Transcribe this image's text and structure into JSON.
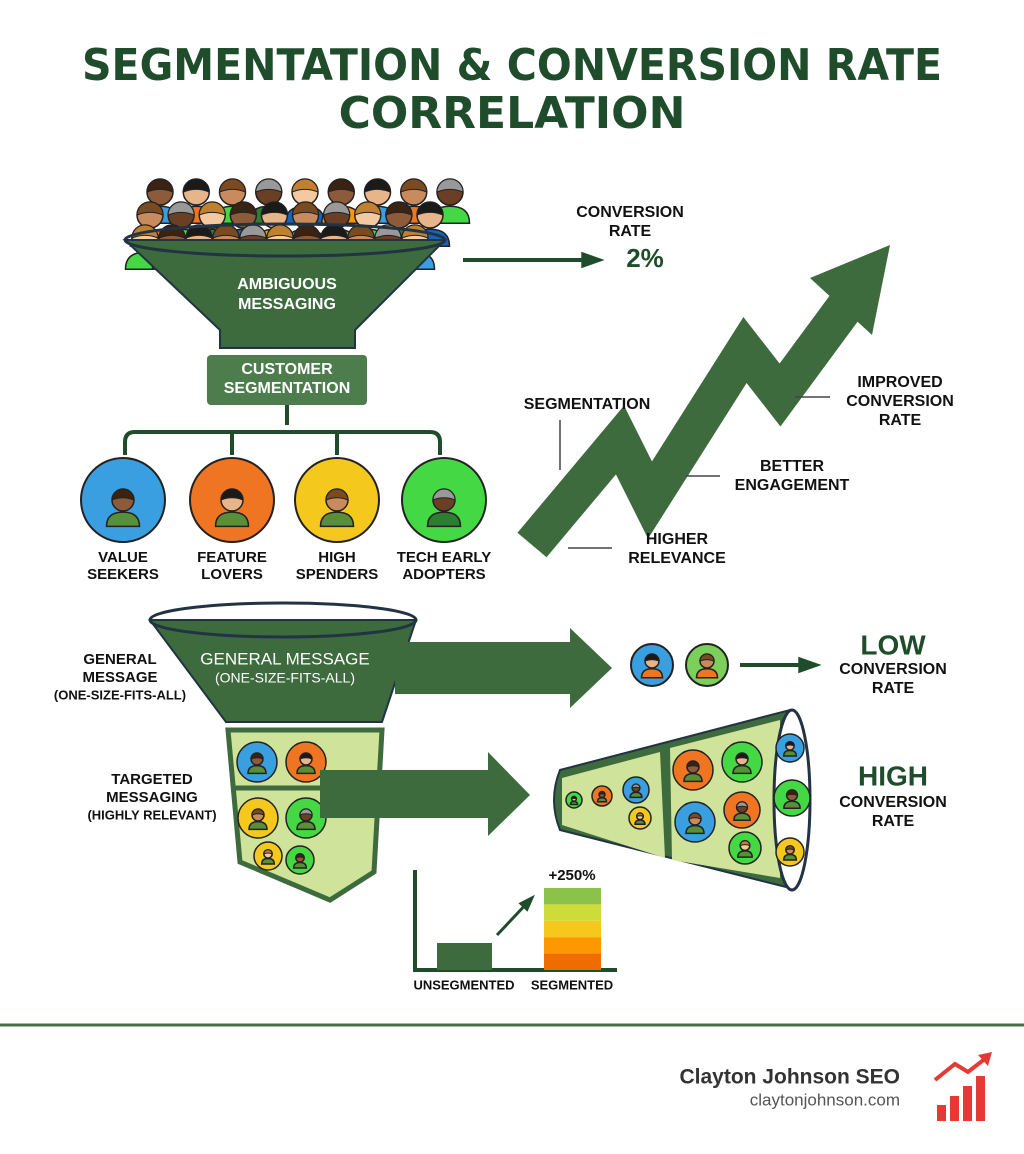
{
  "title": [
    "SEGMENTATION & CONVERSION RATE",
    "CORRELATION"
  ],
  "top_funnel": {
    "label": [
      "AMBIGUOUS",
      "MESSAGING"
    ],
    "result": {
      "label": [
        "CONVERSION",
        "RATE"
      ],
      "value": "2%"
    }
  },
  "segmentation_box": [
    "CUSTOMER",
    "SEGMENTATION"
  ],
  "segments": [
    {
      "label": [
        "VALUE",
        "SEEKERS"
      ],
      "color": "#3a9fe0"
    },
    {
      "label": [
        "FEATURE",
        "LOVERS"
      ],
      "color": "#f07522"
    },
    {
      "label": [
        "HIGH",
        "SPENDERS"
      ],
      "color": "#f5c81e"
    },
    {
      "label": [
        "TECH EARLY",
        "ADOPTERS"
      ],
      "color": "#45d845"
    }
  ],
  "growth_arrow": {
    "steps": [
      {
        "label": [
          "SEGMENTATION"
        ]
      },
      {
        "label": [
          "HIGHER",
          "RELEVANCE"
        ]
      },
      {
        "label": [
          "BETTER",
          "ENGAGEMENT"
        ]
      },
      {
        "label": [
          "IMPROVED",
          "CONVERSION",
          "RATE"
        ]
      }
    ]
  },
  "general": {
    "side_label": [
      "GENERAL",
      "MESSAGE",
      "(ONE-SIZE-FITS-ALL)"
    ],
    "funnel_label": [
      "GENERAL MESSAGE",
      "(ONE-SIZE-FITS-ALL)"
    ],
    "result": {
      "level": "LOW",
      "label": [
        "CONVERSION",
        "RATE"
      ]
    }
  },
  "targeted": {
    "side_label": [
      "TARGETED",
      "MESSAGING",
      "(HIGHLY RELEVANT)"
    ],
    "result": {
      "level": "HIGH",
      "label": [
        "CONVERSION",
        "RATE"
      ]
    }
  },
  "comparison": {
    "change": "+250%",
    "categories": [
      "UNSEGMENTED",
      "SEGMENTED"
    ]
  },
  "footer": {
    "brand": "Clayton Johnson SEO",
    "url": "claytonjohnson.com"
  }
}
